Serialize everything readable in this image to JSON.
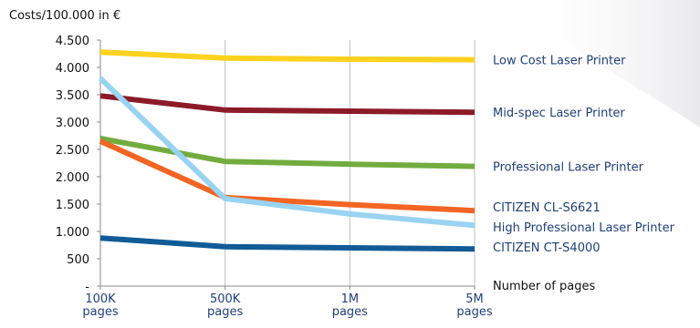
{
  "chart_data": {
    "type": "line",
    "ylabel": "Costs/100.000 in €",
    "xlabel": "Number of pages",
    "categories": [
      "100K\npages",
      "500K\npages",
      "1M\npages",
      "5M\npages"
    ],
    "y_ticks": [
      "-",
      "500",
      "1.000",
      "1.500",
      "2.000",
      "2.500",
      "3.000",
      "3.500",
      "4.000",
      "4.500"
    ],
    "ylim": [
      0,
      4500
    ],
    "grid": "vertical",
    "legend": "right",
    "series": [
      {
        "name": "Low Cost Laser Printer",
        "color": "#ffd21f",
        "values": [
          4280,
          4170,
          4150,
          4140
        ]
      },
      {
        "name": "Mid-spec Laser Printer",
        "color": "#8c1b2a",
        "values": [
          3480,
          3220,
          3200,
          3180
        ]
      },
      {
        "name": "Professional Laser Printer",
        "color": "#72ac3f",
        "values": [
          2700,
          2280,
          2230,
          2190
        ]
      },
      {
        "name": "CITIZEN CL-S6621",
        "color": "#f26522",
        "values": [
          2650,
          1620,
          1490,
          1380
        ]
      },
      {
        "name": "High Professional Laser Printer",
        "color": "#99d3f2",
        "values": [
          3800,
          1600,
          1320,
          1110
        ]
      },
      {
        "name": "CITIZEN CT-S4000",
        "color": "#115b97",
        "values": [
          880,
          720,
          700,
          680
        ]
      }
    ]
  }
}
